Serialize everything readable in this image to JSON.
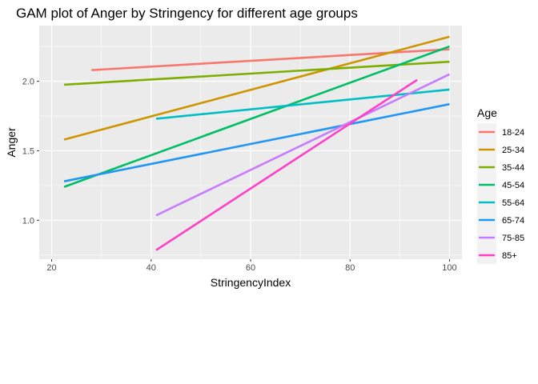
{
  "chart_data": {
    "type": "line",
    "title": "GAM plot of Anger by Stringency for different age groups",
    "xlabel": "StringencyIndex",
    "ylabel": "Anger",
    "xlim": [
      17.5,
      102.5
    ],
    "ylim": [
      0.72,
      2.4
    ],
    "x_ticks": [
      20,
      40,
      60,
      80,
      100
    ],
    "y_ticks": [
      1.0,
      1.5,
      2.0
    ],
    "grid": true,
    "legend_position": "right",
    "legend_title": "Age",
    "series": [
      {
        "name": "18-24",
        "color": "#F8766D",
        "x": [
          28,
          100
        ],
        "y": [
          2.08,
          2.23
        ]
      },
      {
        "name": "25-34",
        "color": "#CD9600",
        "x": [
          22.5,
          100
        ],
        "y": [
          1.58,
          2.32
        ]
      },
      {
        "name": "35-44",
        "color": "#7CAE00",
        "x": [
          22.5,
          100
        ],
        "y": [
          1.975,
          2.14
        ]
      },
      {
        "name": "45-54",
        "color": "#00BE67",
        "x": [
          22.5,
          100
        ],
        "y": [
          1.24,
          2.25
        ]
      },
      {
        "name": "55-64",
        "color": "#00BFC4",
        "x": [
          41,
          100
        ],
        "y": [
          1.73,
          1.94
        ]
      },
      {
        "name": "65-74",
        "color": "#2196F3",
        "x": [
          22.5,
          100
        ],
        "y": [
          1.28,
          1.835
        ]
      },
      {
        "name": "75-85",
        "color": "#C77CFF",
        "x": [
          41,
          100
        ],
        "y": [
          1.035,
          2.05
        ]
      },
      {
        "name": "85+",
        "color": "#FF3FC8",
        "x": [
          41,
          93.5
        ],
        "y": [
          0.785,
          2.01
        ]
      }
    ]
  }
}
